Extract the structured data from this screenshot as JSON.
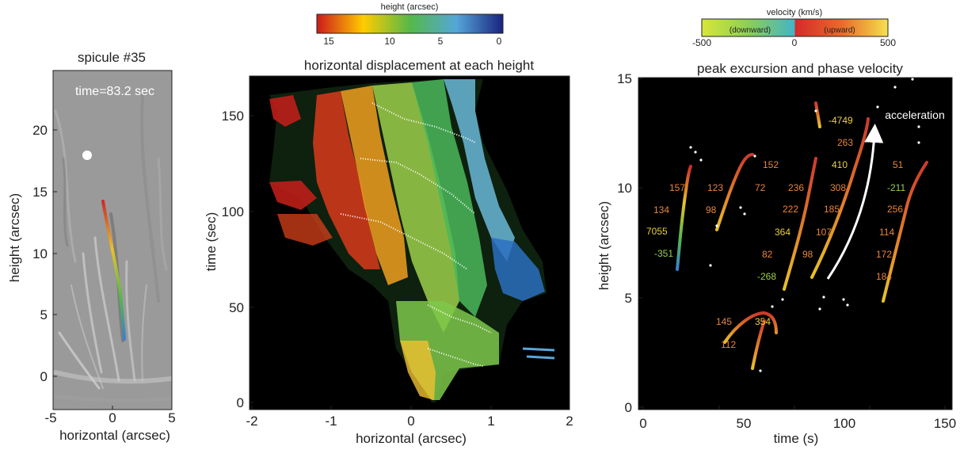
{
  "panel1": {
    "title": "spicule #35",
    "time_label": "time=83.2 sec",
    "xlabel": "horizontal (arcsec)",
    "ylabel": "height (arcsec)",
    "xticks": [
      "-5",
      "0",
      "5"
    ],
    "yticks": [
      "0",
      "5",
      "10",
      "15",
      "20"
    ]
  },
  "panel2": {
    "title": "horizontal displacement at each height",
    "xlabel": "horizontal (arcsec)",
    "ylabel": "time (sec)",
    "xticks": [
      "-2",
      "-1",
      "0",
      "1",
      "2"
    ],
    "yticks": [
      "0",
      "50",
      "100",
      "150"
    ],
    "colorbar": {
      "title": "height (arcsec)",
      "ticks": [
        "15",
        "10",
        "5",
        "0"
      ]
    }
  },
  "panel3": {
    "title": "peak excursion and phase velocity",
    "xlabel": "time (s)",
    "ylabel": "height (arcsec)",
    "xticks": [
      "0",
      "50",
      "100",
      "150"
    ],
    "yticks": [
      "0",
      "5",
      "10",
      "15"
    ],
    "arrow_label": "acceleration",
    "colorbar": {
      "title": "velocity (km/s)",
      "left_value": "-500",
      "left_label": "(downward)",
      "center_value": "0",
      "right_label": "(upward)",
      "right_value": "500"
    },
    "annotations": [
      {
        "text": "157",
        "color": "#e8843a"
      },
      {
        "text": "134",
        "color": "#e8843a"
      },
      {
        "text": "7055",
        "color": "#e8d23a"
      },
      {
        "text": "-351",
        "color": "#9ccf4a"
      },
      {
        "text": "123",
        "color": "#e8843a"
      },
      {
        "text": "98",
        "color": "#e8843a"
      },
      {
        "text": "152",
        "color": "#e8843a"
      },
      {
        "text": "72",
        "color": "#e8843a"
      },
      {
        "text": "236",
        "color": "#e8843a"
      },
      {
        "text": "222",
        "color": "#e8843a"
      },
      {
        "text": "364",
        "color": "#e8d23a"
      },
      {
        "text": "82",
        "color": "#e8843a"
      },
      {
        "text": "-268",
        "color": "#9ccf4a"
      },
      {
        "text": "-4749",
        "color": "#e8d23a"
      },
      {
        "text": "263",
        "color": "#e8843a"
      },
      {
        "text": "410",
        "color": "#e8d23a"
      },
      {
        "text": "308",
        "color": "#e8843a"
      },
      {
        "text": "185",
        "color": "#e8843a"
      },
      {
        "text": "107",
        "color": "#e8843a"
      },
      {
        "text": "98",
        "color": "#e8843a"
      },
      {
        "text": "51",
        "color": "#e8843a"
      },
      {
        "text": "-211",
        "color": "#9ccf4a"
      },
      {
        "text": "256",
        "color": "#e8843a"
      },
      {
        "text": "114",
        "color": "#e8843a"
      },
      {
        "text": "172",
        "color": "#e8843a"
      },
      {
        "text": "184",
        "color": "#e8843a"
      },
      {
        "text": "145",
        "color": "#e8843a"
      },
      {
        "text": "354",
        "color": "#e8d23a"
      },
      {
        "text": "112",
        "color": "#e8843a"
      }
    ]
  }
}
